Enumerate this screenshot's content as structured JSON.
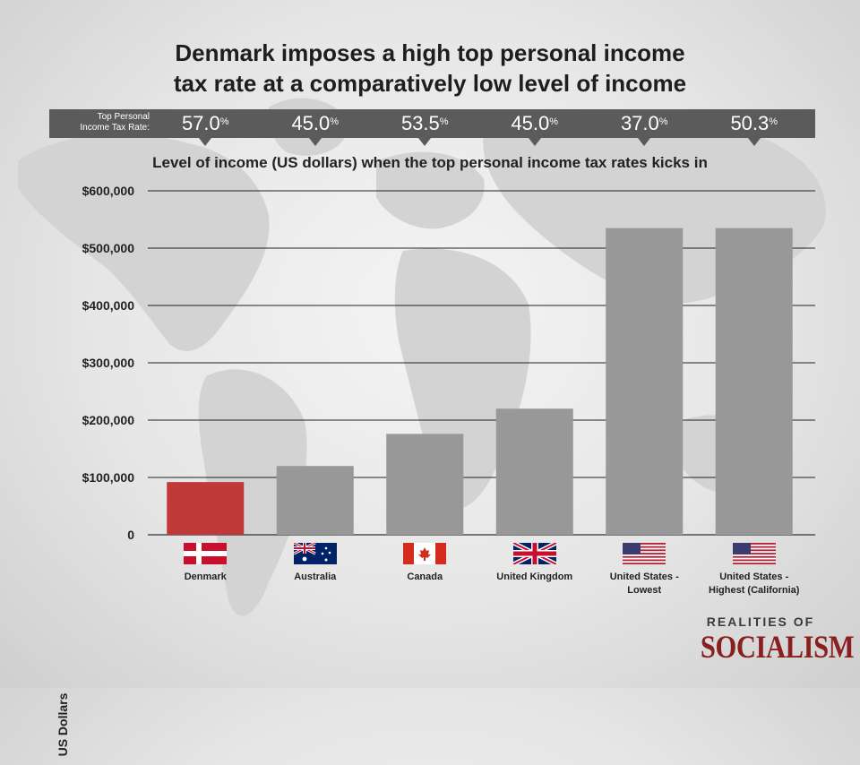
{
  "title_lines": [
    "Denmark imposes a high top personal income",
    "tax rate at a comparatively low level of income"
  ],
  "rate_header": {
    "label_line1": "Top Personal",
    "label_line2": "Income Tax Rate:",
    "values": [
      "57.0",
      "45.0",
      "53.5",
      "45.0",
      "37.0",
      "50.3"
    ],
    "unit": "%"
  },
  "brand": {
    "top": "REALITIES OF",
    "main": "SOCIALISM",
    "color": "#8a1f1f"
  },
  "chart_data": {
    "type": "bar",
    "title": "Level of income (US dollars) when the top personal income tax rates kicks in",
    "ylabel": "US Dollars",
    "xlabel": "",
    "categories": [
      "Denmark",
      "Australia",
      "Canada",
      "United Kingdom",
      "United States - Lowest",
      "United States - Highest (California)"
    ],
    "category_lines": [
      [
        "Denmark"
      ],
      [
        "Australia"
      ],
      [
        "Canada"
      ],
      [
        "United Kingdom"
      ],
      [
        "United States -",
        "Lowest"
      ],
      [
        "United States -",
        "Highest (California)"
      ]
    ],
    "values": [
      92000,
      120000,
      176000,
      220000,
      535000,
      535000
    ],
    "bar_colors": [
      "#c0393a",
      "#989898",
      "#989898",
      "#989898",
      "#989898",
      "#989898"
    ],
    "ylim": [
      0,
      600000
    ],
    "yticks": [
      0,
      100000,
      200000,
      300000,
      400000,
      500000,
      600000
    ],
    "ytick_labels": [
      "0",
      "$100,000",
      "$200,000",
      "$300,000",
      "$400,000",
      "$500,000",
      "$600,000"
    ],
    "flags": [
      "denmark-flag-icon",
      "australia-flag-icon",
      "canada-flag-icon",
      "united-kingdom-flag-icon",
      "united-states-flag-icon",
      "united-states-flag-icon"
    ],
    "grid": true,
    "legend": "none"
  }
}
